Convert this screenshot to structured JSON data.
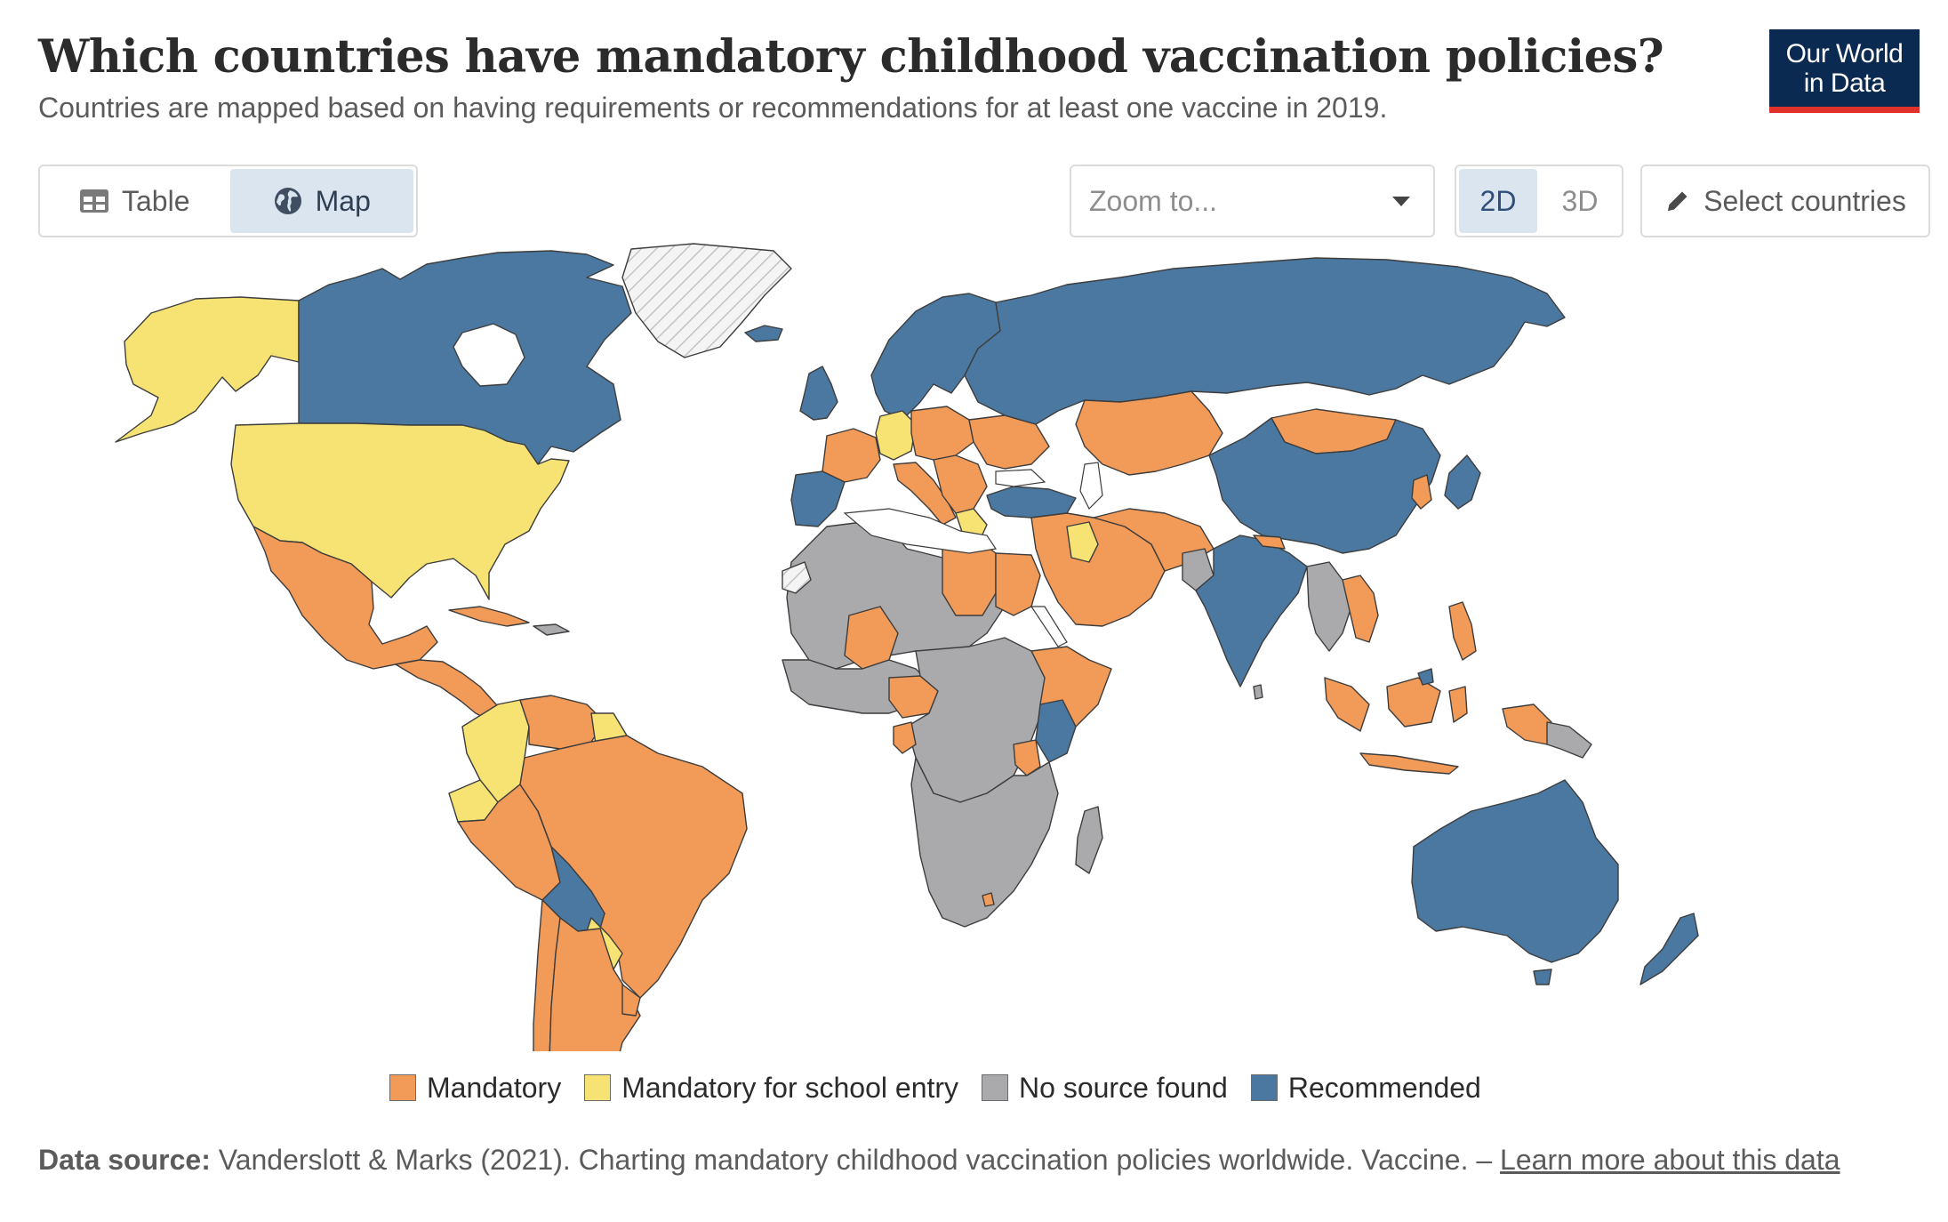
{
  "header": {
    "title": "Which countries have mandatory childhood vaccination policies?",
    "subtitle": "Countries are mapped based on having requirements or recommendations for at least one vaccine in 2019.",
    "logo_line1": "Our World",
    "logo_line2": "in Data"
  },
  "controls": {
    "table_label": "Table",
    "map_label": "Map",
    "zoom_placeholder": "Zoom to...",
    "proj_2d": "2D",
    "proj_3d": "3D",
    "select_countries": "Select countries"
  },
  "colors": {
    "mandatory": "#f29a57",
    "mandatory_school": "#f7e374",
    "no_source": "#aaaaad",
    "recommended": "#4a78a0",
    "no_data": "#f2f2f2",
    "logo_bg": "#0b2a52",
    "logo_accent": "#e0312b"
  },
  "legend": [
    {
      "label": "Mandatory",
      "color": "#f29a57"
    },
    {
      "label": "Mandatory for school entry",
      "color": "#f7e374"
    },
    {
      "label": "No source found",
      "color": "#aaaaad"
    },
    {
      "label": "Recommended",
      "color": "#4a78a0"
    }
  ],
  "footer": {
    "source_label": "Data source:",
    "source_text": " Vanderslott & Marks (2021). Charting mandatory childhood vaccination policies worldwide. Vaccine. – ",
    "link_text": "Learn more about this data"
  },
  "icons": {
    "table": "table-icon",
    "map": "globe-icon",
    "dropdown": "chevron-down-icon",
    "select": "pencil-icon"
  }
}
